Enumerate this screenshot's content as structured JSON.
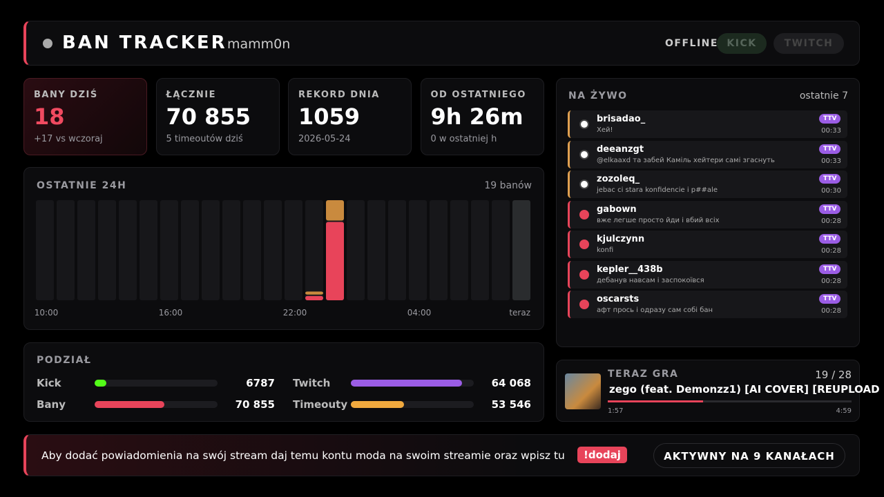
{
  "header": {
    "title": "BAN TRACKER",
    "user": "mamm0n",
    "status": "OFFLINE",
    "buttons": [
      "KICK",
      "TWITCH"
    ]
  },
  "stats": [
    {
      "label": "BANY DZIŚ",
      "value": "18",
      "note": "+17 vs wczoraj"
    },
    {
      "label": "ŁĄCZNIE",
      "value": "70 855",
      "note": "5 timeoutów dziś"
    },
    {
      "label": "REKORD DNIA",
      "value": "1059",
      "note": "2026-05-24"
    },
    {
      "label": "OD OSTATNIEGO",
      "value": "9h 26m",
      "note": "0 w ostatniej h"
    }
  ],
  "chart_data": {
    "type": "bar",
    "title": "OSTATNIE 24H",
    "subtitle": "19 banów",
    "categories": [
      "10:00",
      null,
      null,
      null,
      null,
      null,
      "16:00",
      null,
      null,
      null,
      null,
      null,
      "22:00",
      null,
      null,
      null,
      null,
      null,
      "04:00",
      null,
      null,
      null,
      null,
      "teraz"
    ],
    "series": [
      {
        "color": "#e8445a",
        "values": [
          0,
          0,
          0,
          0,
          0,
          0,
          0,
          0,
          0,
          0,
          0,
          0,
          0,
          1,
          18,
          0,
          0,
          0,
          0,
          0,
          0,
          0,
          0,
          0
        ]
      },
      {
        "color": "#c98a3e",
        "values": [
          0,
          0,
          0,
          0,
          0,
          0,
          0,
          0,
          0,
          0,
          0,
          0,
          0,
          1,
          5,
          0,
          0,
          0,
          0,
          0,
          0,
          0,
          0,
          0
        ]
      }
    ],
    "ylim": [
      0,
      23
    ]
  },
  "breakdown": {
    "title": "PODZIAŁ",
    "groups": [
      {
        "items": [
          {
            "name": "Kick",
            "value": 6787,
            "color": "#53fc18"
          },
          {
            "name": "Twitch",
            "value": {
              "value": 64068,
              "label": "64 068"
            },
            "color": "#9b5de5"
          }
        ]
      },
      {
        "items": [
          {
            "name": "Bany",
            "value": {
              "value": 70855,
              "label": "70 855"
            },
            "color": "#e8445a"
          },
          {
            "name": "Timeouty",
            "value": {
              "value": 53546,
              "label": "53 546"
            },
            "color": "#f0a93e"
          }
        ]
      }
    ]
  },
  "live": {
    "title": "NA ŻYWO",
    "subtitle": "ostatnie 7",
    "entries": [
      {
        "user": "brisadao_",
        "message": "Хей!",
        "platform": "TTV",
        "time": "00:33",
        "kind": "timeout"
      },
      {
        "user": "deeanzgt",
        "message": "@elkaaxd та забей Каміль хейтери самі згаснуть",
        "platform": "TTV",
        "time": "00:33",
        "kind": "timeout"
      },
      {
        "user": "zozoleq_",
        "message": "jebac ci stara konfidencie i p##ale",
        "platform": "TTV",
        "time": "00:30",
        "kind": "timeout"
      },
      {
        "user": "gabown",
        "message": "вже легше просто йди і вбий всіх",
        "platform": "TTV",
        "time": "00:28",
        "kind": "ban"
      },
      {
        "user": "kjulczynn",
        "message": "konfi",
        "platform": "TTV",
        "time": "00:28",
        "kind": "ban"
      },
      {
        "user": "kepler__438b",
        "message": "дебанув навсам і заспокоївся",
        "platform": "TTV",
        "time": "00:28",
        "kind": "ban"
      },
      {
        "user": "oscarsts",
        "message": "афт прось і одразу сам собі бан",
        "platform": "TTV",
        "time": "00:28",
        "kind": "ban"
      }
    ]
  },
  "now_playing": {
    "title": "TERAZ GRA",
    "position": "19 / 28",
    "song": "zego (feat. Demonzz1) [AI COVER] [REUPLOAD",
    "elapsed": "1:57",
    "duration": "4:59"
  },
  "footer": {
    "message": "Aby dodać powiadomienia na swój stream daj temu kontu moda na swoim streamie oraz wpisz tu",
    "command": "!dodaj",
    "status": "AKTYWNY NA 9 KANAŁACH"
  }
}
